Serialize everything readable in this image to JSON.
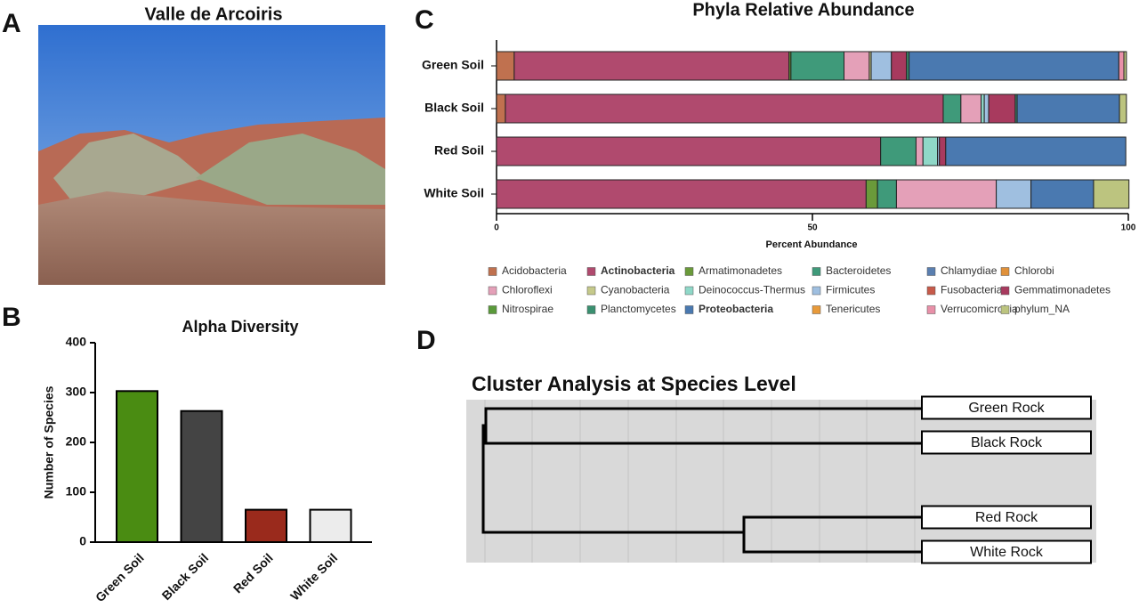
{
  "photo": {
    "panel": "A",
    "title": "Valle de Arcoiris"
  },
  "chart_data": [
    {
      "type": "bar",
      "panel": "B",
      "title": "Alpha Diversity",
      "ylabel": "Number of Species",
      "categories": [
        "Green Soil",
        "Black Soil",
        "Red Soil",
        "White Soil"
      ],
      "values": [
        303,
        263,
        65,
        65
      ],
      "colors": [
        "#4a8c12",
        "#444444",
        "#9a2a1c",
        "#ececec"
      ],
      "ylim": [
        0,
        400
      ],
      "yticks": [
        0,
        100,
        200,
        300,
        400
      ]
    },
    {
      "type": "stacked-hbar",
      "panel": "C",
      "title": "Phyla Relative Abundance",
      "xlabel": "Percent Abundance",
      "categories": [
        "Green Soil",
        "Black Soil",
        "Red Soil",
        "White Soil"
      ],
      "xlim": [
        0,
        100
      ],
      "xticks": [
        0,
        50,
        100
      ],
      "series": [
        {
          "name": "Acidobacteria",
          "color": "#c0714f",
          "values": [
            2.8,
            1.4,
            0,
            0
          ]
        },
        {
          "name": "Actinobacteria",
          "color": "#b04a6e",
          "bold": true,
          "values": [
            43.5,
            69.3,
            60.8,
            58.5
          ]
        },
        {
          "name": "Armatimonadetes",
          "color": "#6a9a3a",
          "values": [
            0.3,
            0,
            0,
            1.8
          ]
        },
        {
          "name": "Bacteroidetes",
          "color": "#3f9a7a",
          "values": [
            8.4,
            2.8,
            5.6,
            3.0
          ]
        },
        {
          "name": "Chlamydiae",
          "color": "#5a7fb0",
          "values": [
            0,
            0,
            0,
            0
          ]
        },
        {
          "name": "Chlorobi",
          "color": "#e0913a",
          "values": [
            0,
            0,
            0,
            0
          ]
        },
        {
          "name": "Chloroflexi",
          "color": "#e4a0b8",
          "values": [
            4.0,
            3.2,
            1.1,
            15.8
          ]
        },
        {
          "name": "Cyanobacteria",
          "color": "#c5c98a",
          "values": [
            0.3,
            0,
            0,
            0
          ]
        },
        {
          "name": "Deinococcus-Thermus",
          "color": "#8fd8c8",
          "values": [
            0,
            0.5,
            2.3,
            0
          ]
        },
        {
          "name": "Firmicutes",
          "color": "#9fbfe0",
          "values": [
            3.2,
            0.7,
            0.3,
            5.5
          ]
        },
        {
          "name": "Fusobacteria",
          "color": "#c75a4a",
          "values": [
            0,
            0,
            0,
            0
          ]
        },
        {
          "name": "Gemmatimonadetes",
          "color": "#a83a5e",
          "values": [
            2.4,
            4.2,
            1.0,
            0
          ]
        },
        {
          "name": "Nitrospirae",
          "color": "#5a9a3a",
          "values": [
            0,
            0,
            0,
            0
          ]
        },
        {
          "name": "Planctomycetes",
          "color": "#3a9070",
          "values": [
            0.4,
            0.3,
            0,
            0
          ]
        },
        {
          "name": "Proteobacteria",
          "color": "#4a79b0",
          "bold": true,
          "values": [
            33.2,
            16.2,
            28.5,
            9.9
          ]
        },
        {
          "name": "Tenericutes",
          "color": "#e89a3a",
          "values": [
            0,
            0,
            0,
            0
          ]
        },
        {
          "name": "Verrucomicrobia",
          "color": "#e890a8",
          "values": [
            0.8,
            0,
            0,
            0
          ]
        },
        {
          "name": "phylum_NA",
          "color": "#bcc47f",
          "values": [
            0.4,
            1.1,
            0,
            5.6
          ]
        }
      ]
    },
    {
      "type": "dendrogram",
      "panel": "D",
      "title": "Cluster Analysis at Species Level",
      "leaves": [
        "Green Rock",
        "Black Rock",
        "Red Rock",
        "White Rock"
      ]
    }
  ]
}
